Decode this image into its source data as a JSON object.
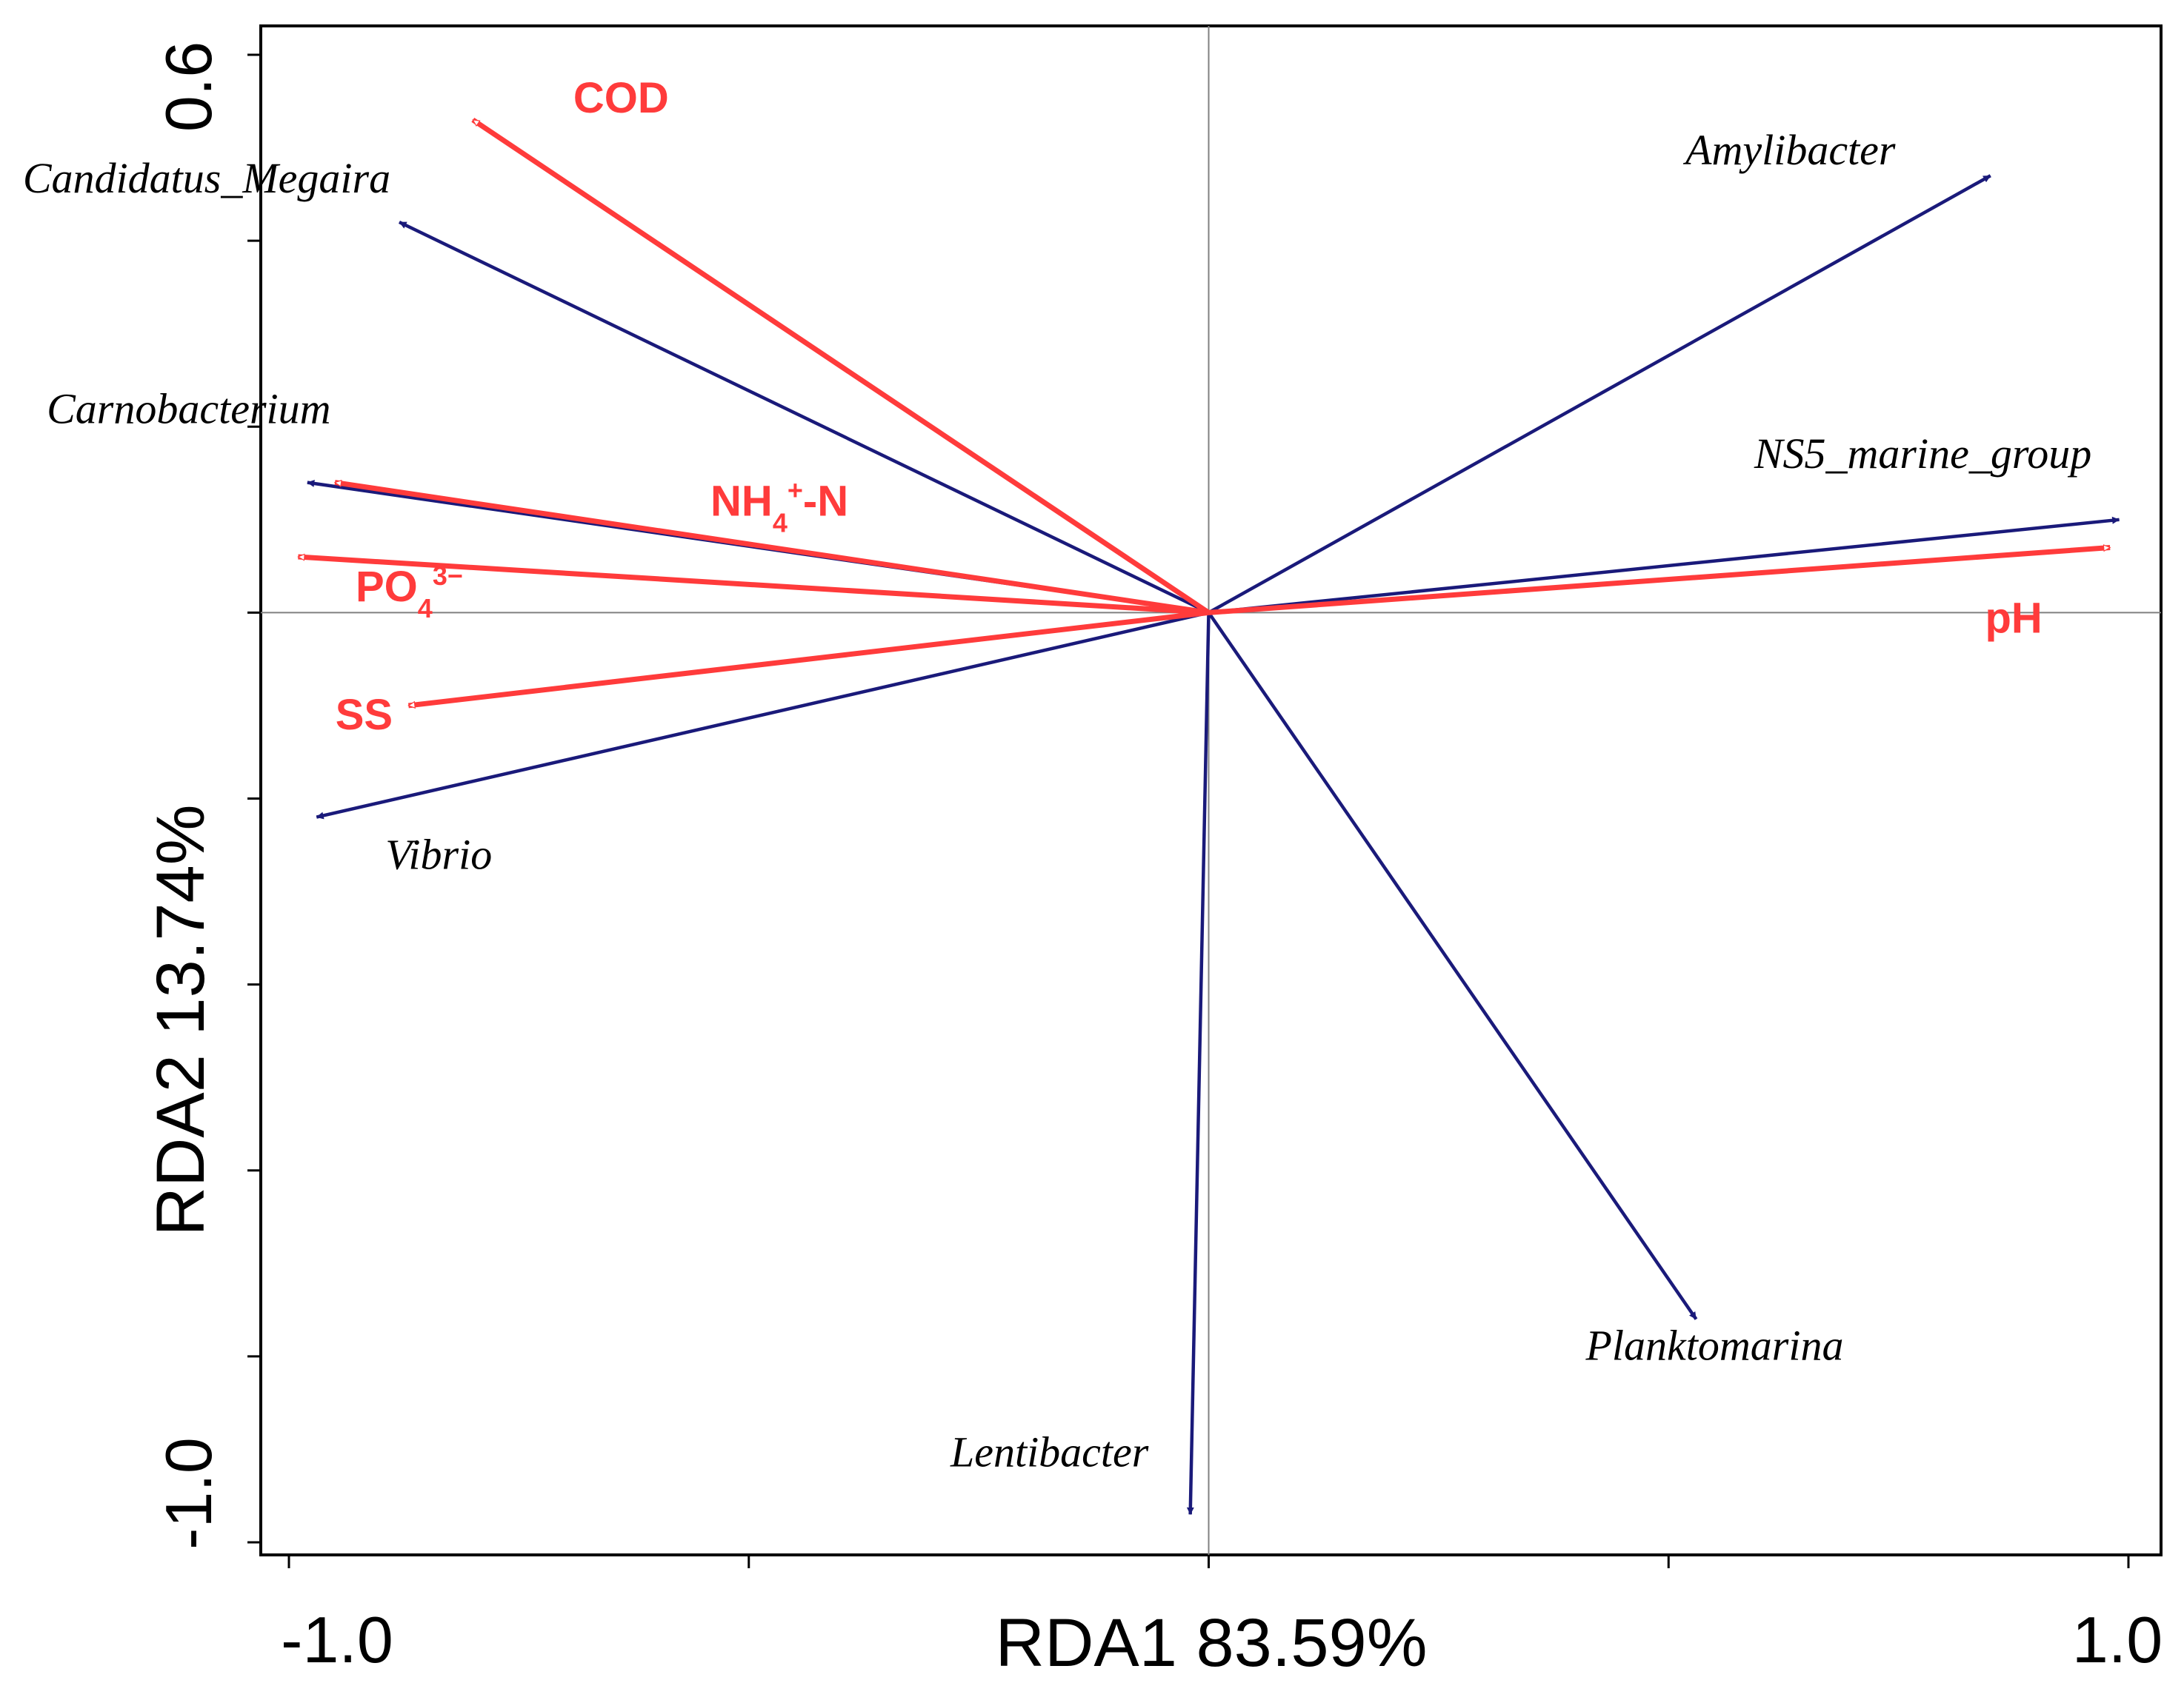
{
  "chart_data": {
    "type": "biplot",
    "xlabel": "RDA1 83.59%",
    "ylabel": "RDA2 13.74%",
    "xlim": [
      -1.0,
      1.0
    ],
    "ylim": [
      -1.0,
      0.6
    ],
    "x_tick_labels": [
      "-1.0",
      "1.0"
    ],
    "y_tick_labels": [
      "0.6",
      "-1.0"
    ],
    "colors": {
      "species": "#1a1a7a",
      "environment": "#ff3b3b",
      "frame": "#000000",
      "axis_line": "#808080"
    },
    "species": [
      {
        "name": "Candidatus_Megaira",
        "x": -0.88,
        "y": 0.42
      },
      {
        "name": "Carnobacterium",
        "x": -0.98,
        "y": 0.14
      },
      {
        "name": "Vibrio",
        "x": -0.97,
        "y": -0.22
      },
      {
        "name": "Amylibacter",
        "x": 0.85,
        "y": 0.47
      },
      {
        "name": "NS5_marine_group",
        "x": 0.99,
        "y": 0.1
      },
      {
        "name": "Planktomarina",
        "x": 0.53,
        "y": -0.76
      },
      {
        "name": "Lentibacter",
        "x": -0.02,
        "y": -0.97
      }
    ],
    "environment": [
      {
        "name": "COD",
        "base": "COD",
        "sub": "",
        "sup": "",
        "after": "",
        "x": -0.8,
        "y": 0.53
      },
      {
        "name": "NH4+-N",
        "base": "NH",
        "sub": "4",
        "sup": "+",
        "after": "-N",
        "x": -0.95,
        "y": 0.14
      },
      {
        "name": "PO43−",
        "base": "PO",
        "sub": "4",
        "sup": "3−",
        "after": "",
        "x": -0.99,
        "y": 0.06
      },
      {
        "name": "SS",
        "base": "SS",
        "sub": "",
        "sup": "",
        "after": "",
        "x": -0.87,
        "y": -0.1
      },
      {
        "name": "pH",
        "base": "pH",
        "sub": "",
        "sup": "",
        "after": "",
        "x": 0.98,
        "y": 0.07
      }
    ]
  }
}
